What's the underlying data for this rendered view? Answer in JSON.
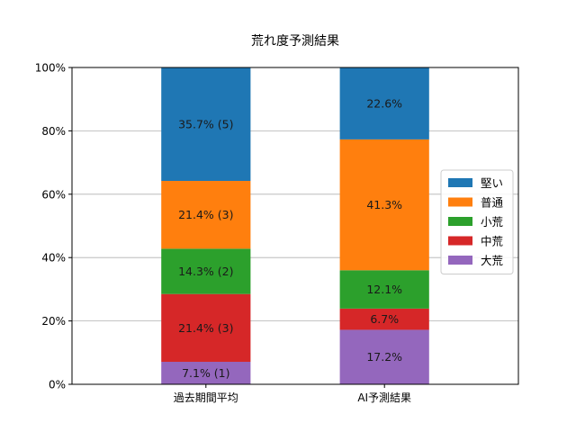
{
  "chart_data": {
    "type": "bar",
    "stacked": true,
    "title": "荒れ度予測結果",
    "xlabel": "",
    "ylabel": "",
    "categories": [
      "過去期間平均",
      "AI予測結果"
    ],
    "ylim": [
      0,
      100
    ],
    "yticks": [
      "0%",
      "20%",
      "40%",
      "60%",
      "80%",
      "100%"
    ],
    "grid": "y",
    "legend_position": "right",
    "series": [
      {
        "name": "大荒",
        "color": "#9467bd",
        "values": [
          7.1,
          17.2
        ],
        "labels": [
          "7.1% (1)",
          "17.2%"
        ]
      },
      {
        "name": "中荒",
        "color": "#d62728",
        "values": [
          21.4,
          6.7
        ],
        "labels": [
          "21.4% (3)",
          "6.7%"
        ]
      },
      {
        "name": "小荒",
        "color": "#2ca02c",
        "values": [
          14.3,
          12.1
        ],
        "labels": [
          "14.3% (2)",
          "12.1%"
        ]
      },
      {
        "name": "普通",
        "color": "#ff7f0e",
        "values": [
          21.4,
          41.3
        ],
        "labels": [
          "21.4% (3)",
          "41.3%"
        ]
      },
      {
        "name": "堅い",
        "color": "#1f77b4",
        "values": [
          35.7,
          22.6
        ],
        "labels": [
          "35.7% (5)",
          "22.6%"
        ]
      }
    ],
    "legend_order": [
      "堅い",
      "普通",
      "小荒",
      "中荒",
      "大荒"
    ]
  }
}
